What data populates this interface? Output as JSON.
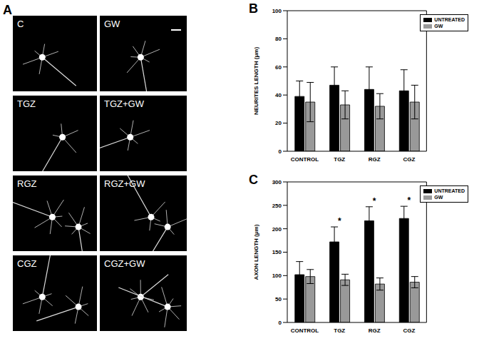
{
  "panel": {
    "label": "A",
    "images": [
      "C",
      "GW",
      "TGZ",
      "TGZ+GW",
      "RGZ",
      "RGZ+GW",
      "CGZ",
      "CGZ+GW"
    ]
  },
  "chart_data": [
    {
      "type": "bar",
      "title": "B",
      "y_label": "NEURITES LENGTH (μm)",
      "categories": [
        "CONTROL",
        "TGZ",
        "RGZ",
        "CGZ"
      ],
      "series": [
        {
          "name": "UNTREATED",
          "color": "#000000",
          "values": [
            39,
            47,
            44,
            43
          ],
          "errors": [
            11,
            13,
            16,
            15
          ]
        },
        {
          "name": "GW",
          "color": "#999999",
          "values": [
            35,
            33,
            32,
            35
          ],
          "errors": [
            14,
            10,
            9,
            12
          ]
        }
      ],
      "ylim": [
        0,
        100
      ],
      "yticks": [
        0,
        20,
        40,
        60,
        80,
        100
      ],
      "legend": "upper right"
    },
    {
      "type": "bar",
      "title": "C",
      "y_label": "AXON LENGTH (μm)",
      "categories": [
        "CONTROL",
        "TGZ",
        "RGZ",
        "CGZ"
      ],
      "series": [
        {
          "name": "UNTREATED",
          "color": "#000000",
          "values": [
            102,
            172,
            217,
            222
          ],
          "errors": [
            28,
            32,
            30,
            26
          ]
        },
        {
          "name": "GW",
          "color": "#999999",
          "values": [
            98,
            91,
            82,
            86
          ],
          "errors": [
            15,
            12,
            13,
            12
          ]
        }
      ],
      "ylim": [
        0,
        300
      ],
      "yticks": [
        0,
        50,
        100,
        150,
        200,
        250,
        300
      ],
      "legend": "upper right",
      "annotations": [
        {
          "category": "TGZ",
          "text": "*"
        },
        {
          "category": "RGZ",
          "text": "*"
        },
        {
          "category": "CGZ",
          "text": "*"
        }
      ]
    }
  ]
}
